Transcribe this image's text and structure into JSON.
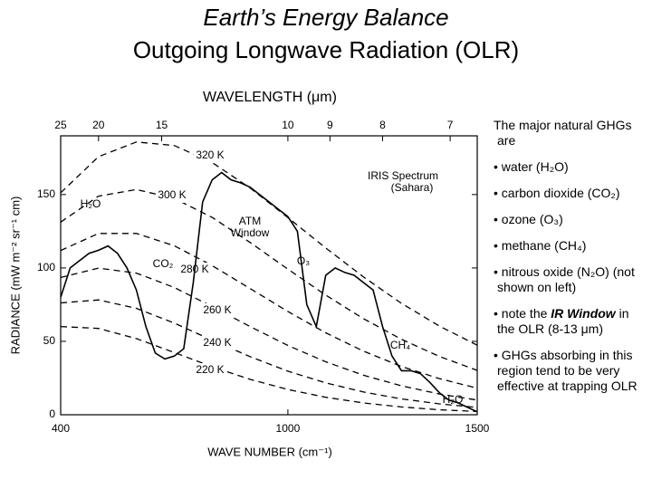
{
  "slide": {
    "title": "Earth’s Energy Balance",
    "subtitle": "Outgoing Longwave Radiation (OLR)",
    "notes": [
      [
        "The major natural GHGs are"
      ],
      [
        "• water (H₂O)"
      ],
      [
        "• carbon dioxide (CO₂)"
      ],
      [
        "• ozone (O₃)"
      ],
      [
        "• methane (CH₄)"
      ],
      [
        "• nitrous oxide (N₂O) (not shown on left)"
      ],
      [
        "• note the ",
        "IR Window",
        " in the OLR (8-13 μm)"
      ],
      [
        "• GHGs absorbing in this region tend to be very effective at trapping OLR"
      ]
    ]
  },
  "chart_data": {
    "type": "line",
    "x_label": "WAVE NUMBER (cm⁻¹)",
    "x2_label": "WAVELENGTH (μm)",
    "y_label": "RADIANCE (mW m⁻² sr⁻¹ cm)",
    "xlim": [
      400,
      1500
    ],
    "ylim": [
      0,
      190
    ],
    "xticks": [
      400,
      1000,
      1500
    ],
    "yticks": [
      0,
      50,
      100,
      150
    ],
    "x2ticks": [
      {
        "value": 400,
        "label": "25"
      },
      {
        "value": 500,
        "label": "20"
      },
      {
        "value": 666.7,
        "label": "15"
      },
      {
        "value": 1000,
        "label": "10"
      },
      {
        "value": 1111.1,
        "label": "9"
      },
      {
        "value": 1250,
        "label": "8"
      },
      {
        "value": 1428.6,
        "label": "7"
      }
    ],
    "annotations": [
      "IRIS Spectrum",
      "(Sahara)",
      "ATM",
      "Window",
      "H₂O",
      "CO₂",
      "O₃",
      "CH₄",
      "H₂O"
    ],
    "series": [
      {
        "name": "320 K",
        "color": "#000000",
        "dashed": true,
        "x": [
          400,
          500,
          600,
          700,
          800,
          900,
          1000,
          1100,
          1200,
          1300,
          1400,
          1500
        ],
        "values": [
          151.2,
          175.8,
          185.8,
          183.4,
          171.8,
          154.5,
          134.3,
          113.6,
          93.8,
          75.9,
          60.4,
          47.4
        ]
      },
      {
        "name": "300 K",
        "color": "#000000",
        "dashed": true,
        "x": [
          400,
          500,
          600,
          700,
          800,
          900,
          1000,
          1100,
          1200,
          1300,
          1400,
          1500
        ],
        "values": [
          131.2,
          148.9,
          153.4,
          147.4,
          134.4,
          117.4,
          99.2,
          81.5,
          65.4,
          51.4,
          39.7,
          30.2
        ]
      },
      {
        "name": "280 K",
        "color": "#000000",
        "dashed": true,
        "x": [
          400,
          500,
          600,
          700,
          800,
          900,
          1000,
          1100,
          1200,
          1300,
          1400,
          1500
        ],
        "values": [
          111.9,
          123.5,
          123.5,
          115.1,
          101.6,
          86.0,
          70.3,
          55.8,
          43.3,
          32.9,
          24.6,
          18.1
        ]
      },
      {
        "name": "260 K",
        "color": "#000000",
        "dashed": true,
        "x": [
          400,
          500,
          600,
          700,
          800,
          900,
          1000,
          1100,
          1200,
          1300,
          1400,
          1500
        ],
        "values": [
          93.5,
          99.9,
          96.5,
          86.7,
          73.7,
          60.1,
          47.2,
          36.1,
          26.9,
          19.7,
          14.1,
          10.0
        ]
      },
      {
        "name": "240 K",
        "color": "#000000",
        "dashed": true,
        "x": [
          400,
          500,
          600,
          700,
          800,
          900,
          1000,
          1100,
          1200,
          1300,
          1400,
          1500
        ],
        "values": [
          76.2,
          78.2,
          72.5,
          62.4,
          50.8,
          39.6,
          29.7,
          21.7,
          15.5,
          10.8,
          7.4,
          5.0
        ]
      },
      {
        "name": "220 K",
        "color": "#000000",
        "dashed": true,
        "x": [
          400,
          500,
          600,
          700,
          800,
          900,
          1000,
          1100,
          1200,
          1300,
          1400,
          1500
        ],
        "values": [
          60.1,
          58.8,
          51.9,
          42.4,
          32.7,
          24.1,
          17.2,
          11.9,
          8.0,
          5.3,
          3.4,
          2.2
        ]
      },
      {
        "color": "#000000",
        "dashed": false,
        "x": [
          400,
          425,
          450,
          475,
          500,
          525,
          550,
          575,
          600,
          625,
          650,
          675,
          700,
          725,
          750,
          775,
          800,
          825,
          850,
          875,
          900,
          925,
          950,
          975,
          1000,
          1025,
          1050,
          1075,
          1100,
          1125,
          1150,
          1175,
          1200,
          1225,
          1250,
          1275,
          1300,
          1325,
          1350,
          1375,
          1400,
          1425,
          1450,
          1475,
          1500
        ],
        "values": [
          80,
          100,
          105,
          110,
          112,
          115,
          110,
          100,
          85,
          60,
          42,
          38,
          40,
          45,
          90,
          145,
          160,
          165,
          160,
          158,
          155,
          150,
          145,
          140,
          135,
          125,
          75,
          60,
          95,
          100,
          97,
          95,
          90,
          85,
          60,
          40,
          30,
          30,
          28,
          22,
          15,
          10,
          8,
          5,
          2
        ]
      }
    ]
  }
}
